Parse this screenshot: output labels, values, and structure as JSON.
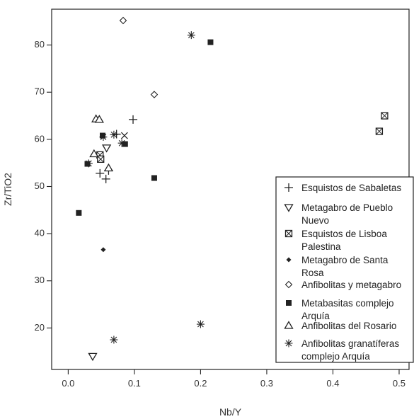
{
  "chart_data": {
    "type": "scatter",
    "title": "",
    "xlabel": "Nb/Y",
    "ylabel": "Zr/TiO2",
    "xlim": [
      -0.025,
      0.515
    ],
    "ylim": [
      11.2,
      87.6
    ],
    "x_ticks": [
      0.0,
      0.1,
      0.2,
      0.3,
      0.4,
      0.5
    ],
    "x_tick_labels": [
      "0.0",
      "0.1",
      "0.2",
      "0.3",
      "0.4",
      "0.5"
    ],
    "y_ticks": [
      20,
      30,
      40,
      50,
      60,
      70,
      80
    ],
    "y_tick_labels": [
      "20",
      "30",
      "40",
      "50",
      "60",
      "70",
      "80"
    ],
    "grid": false,
    "legend_position": "bottom-right (inside plot)",
    "series": [
      {
        "name": "Esquistos de Sabaletas",
        "marker": "plus",
        "points": [
          [
            0.098,
            64.2
          ],
          [
            0.048,
            52.8
          ],
          [
            0.057,
            51.6
          ],
          [
            0.073,
            61.1
          ],
          [
            0.061,
            53.4
          ]
        ]
      },
      {
        "name": "Metagabro de Pueblo Nuevo",
        "marker": "triangle-down",
        "points": [
          [
            0.037,
            14.0
          ],
          [
            0.058,
            58.2
          ]
        ]
      },
      {
        "name": "Esquistos de Lisboa Palestina",
        "marker": "square-x",
        "points": [
          [
            0.048,
            56.7
          ],
          [
            0.049,
            55.8
          ],
          [
            0.47,
            61.7
          ],
          [
            0.478,
            65.0
          ]
        ]
      },
      {
        "name": "Metagabro de Santa Rosa",
        "marker": "small-diamond-filled",
        "points": [
          [
            0.053,
            36.6
          ]
        ]
      },
      {
        "name": "Anfibolitas y metagabro",
        "marker": "diamond",
        "points": [
          [
            0.083,
            85.2
          ],
          [
            0.13,
            69.5
          ]
        ]
      },
      {
        "name": "Metabasitas complejo Arquía",
        "marker": "square-filled",
        "points": [
          [
            0.016,
            44.4
          ],
          [
            0.029,
            54.8
          ],
          [
            0.052,
            60.8
          ],
          [
            0.086,
            59.0
          ],
          [
            0.13,
            51.8
          ],
          [
            0.215,
            80.6
          ]
        ]
      },
      {
        "name": "Anfibolitas del Rosario",
        "marker": "triangle-up",
        "points": [
          [
            0.042,
            64.3
          ],
          [
            0.047,
            64.2
          ],
          [
            0.039,
            56.9
          ],
          [
            0.061,
            53.9
          ]
        ]
      },
      {
        "name": "Anfibolitas granatíferas complejo Arquía",
        "marker": "asterisk",
        "points": [
          [
            0.186,
            82.1
          ],
          [
            0.069,
            17.5
          ],
          [
            0.2,
            20.8
          ],
          [
            0.053,
            60.5
          ],
          [
            0.069,
            61.0
          ],
          [
            0.081,
            59.2
          ],
          [
            0.031,
            54.9
          ]
        ]
      },
      {
        "name": "",
        "marker": "x",
        "points": [
          [
            0.085,
            60.8
          ]
        ]
      }
    ]
  },
  "legend": [
    {
      "marker": "plus",
      "lines": [
        "Esquistos de Sabaletas"
      ]
    },
    {
      "marker": "triangle-down",
      "lines": [
        "Metagabro de Pueblo",
        "Nuevo"
      ]
    },
    {
      "marker": "square-x",
      "lines": [
        "Esquistos de Lisboa",
        "Palestina"
      ]
    },
    {
      "marker": "small-diamond-filled",
      "lines": [
        "Metagabro de Santa",
        "Rosa"
      ]
    },
    {
      "marker": "diamond",
      "lines": [
        "Anfibolitas y metagabro"
      ]
    },
    {
      "marker": "square-filled",
      "lines": [
        "Metabasitas complejo",
        "Arquía"
      ]
    },
    {
      "marker": "triangle-up",
      "lines": [
        "Anfibolitas del Rosario"
      ]
    },
    {
      "marker": "asterisk",
      "lines": [
        "Anfibolitas granatíferas",
        "complejo Arquía"
      ]
    }
  ]
}
